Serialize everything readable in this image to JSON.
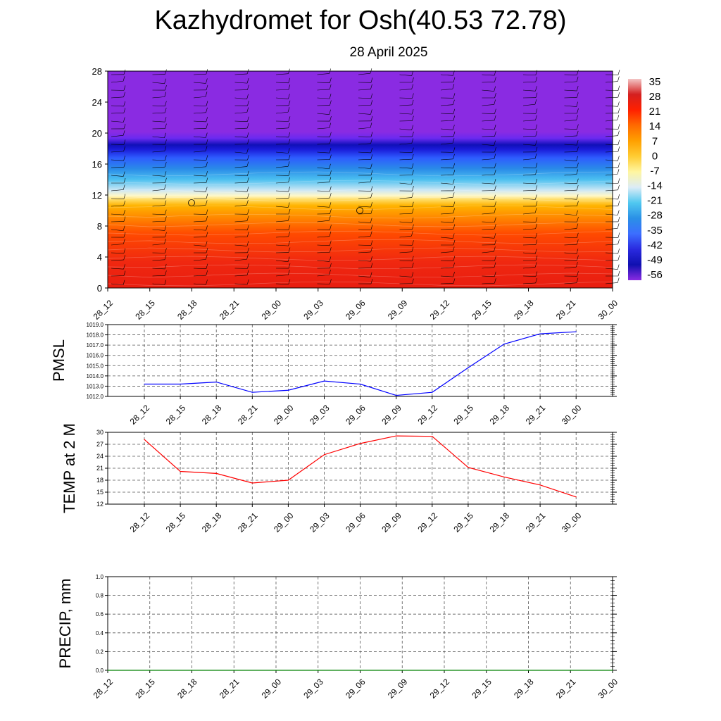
{
  "title": "Kazhydromet for Osh(40.53 72.78)",
  "subtitle": "28 April 2025",
  "time_labels": [
    "28_12",
    "28_15",
    "28_18",
    "28_21",
    "29_00",
    "29_03",
    "29_06",
    "29_09",
    "29_12",
    "29_15",
    "29_18",
    "29_21",
    "30_00"
  ],
  "chart_data": [
    {
      "type": "heatmap",
      "yticks": [
        0,
        4,
        8,
        12,
        16,
        20,
        24,
        28
      ],
      "ylim": [
        0,
        28
      ],
      "colorbar": {
        "labels": [
          "35",
          "28",
          "21",
          "14",
          "7",
          "0",
          "-7",
          "-14",
          "-21",
          "-28",
          "-35",
          "-42",
          "-49",
          "-56"
        ],
        "colors": [
          "#f3c6c6",
          "#d42020",
          "#ff2000",
          "#ff6a00",
          "#ffa000",
          "#ffcc33",
          "#fff6a0",
          "#dcecf6",
          "#50c8f0",
          "#2a90e6",
          "#3c6eff",
          "#2a2adf",
          "#1010b0",
          "#8a2be2"
        ]
      }
    },
    {
      "type": "line",
      "ylabel": "PMSL",
      "ylim": [
        1012.0,
        1019.0
      ],
      "yticks": [
        "1012.0",
        "1013.0",
        "1014.0",
        "1015.0",
        "1016.0",
        "1017.0",
        "1018.0",
        "1019.0"
      ],
      "series": [
        {
          "values": [
            1013.2,
            1013.2,
            1013.4,
            1012.4,
            1012.6,
            1013.5,
            1013.2,
            1012.1,
            1012.4,
            1014.8,
            1017.1,
            1018.1,
            1018.3
          ],
          "color": "#0000ff"
        }
      ]
    },
    {
      "type": "line",
      "ylabel": "TEMP at 2 M",
      "ylim": [
        12,
        30
      ],
      "yticks": [
        "12",
        "15",
        "18",
        "21",
        "24",
        "27",
        "30"
      ],
      "series": [
        {
          "values": [
            28.2,
            20.2,
            19.7,
            17.3,
            18.0,
            24.4,
            27.2,
            29.1,
            29.0,
            21.2,
            18.8,
            16.8,
            13.8
          ],
          "color": "#ff0000"
        }
      ]
    },
    {
      "type": "line",
      "ylabel": "PRECIP, mm",
      "ylim": [
        0.0,
        1.0
      ],
      "yticks": [
        "0.0",
        "0.2",
        "0.4",
        "0.6",
        "0.8",
        "1.0"
      ],
      "series": [
        {
          "values": [
            0,
            0,
            0,
            0,
            0,
            0,
            0,
            0,
            0,
            0,
            0,
            0,
            0
          ],
          "color": "#008000"
        }
      ]
    }
  ]
}
